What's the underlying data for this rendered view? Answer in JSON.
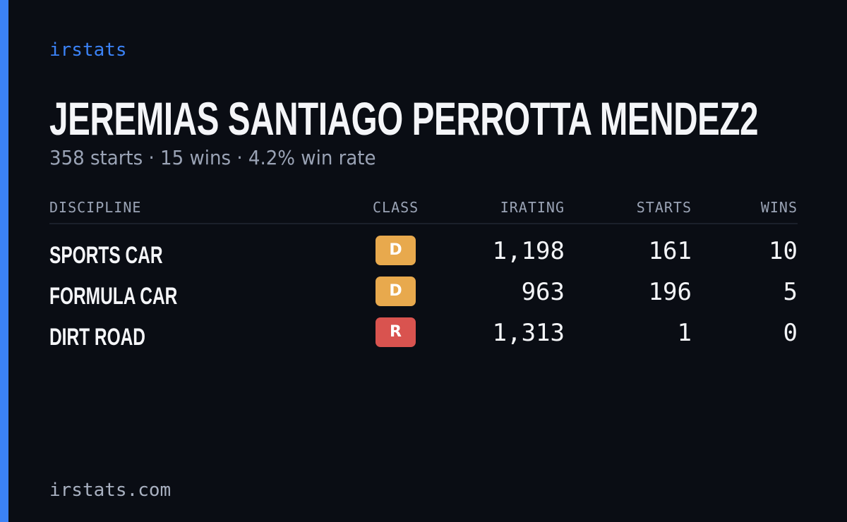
{
  "brand": "irstats",
  "title": "JEREMIAS SANTIAGO PERROTTA MENDEZ2",
  "subtitle": "358 starts · 15 wins · 4.2% win rate",
  "table": {
    "headers": [
      "DISCIPLINE",
      "CLASS",
      "IRATING",
      "STARTS",
      "WINS"
    ],
    "rows": [
      {
        "discipline": "SPORTS CAR",
        "class": "D",
        "class_color": "#e8a94d",
        "irating": "1,198",
        "starts": "161",
        "wins": "10"
      },
      {
        "discipline": "FORMULA CAR",
        "class": "D",
        "class_color": "#e8a94d",
        "irating": "963",
        "starts": "196",
        "wins": "5"
      },
      {
        "discipline": "DIRT ROAD",
        "class": "R",
        "class_color": "#d9534f",
        "irating": "1,313",
        "starts": "1",
        "wins": "0"
      }
    ]
  },
  "footer": "irstats.com"
}
